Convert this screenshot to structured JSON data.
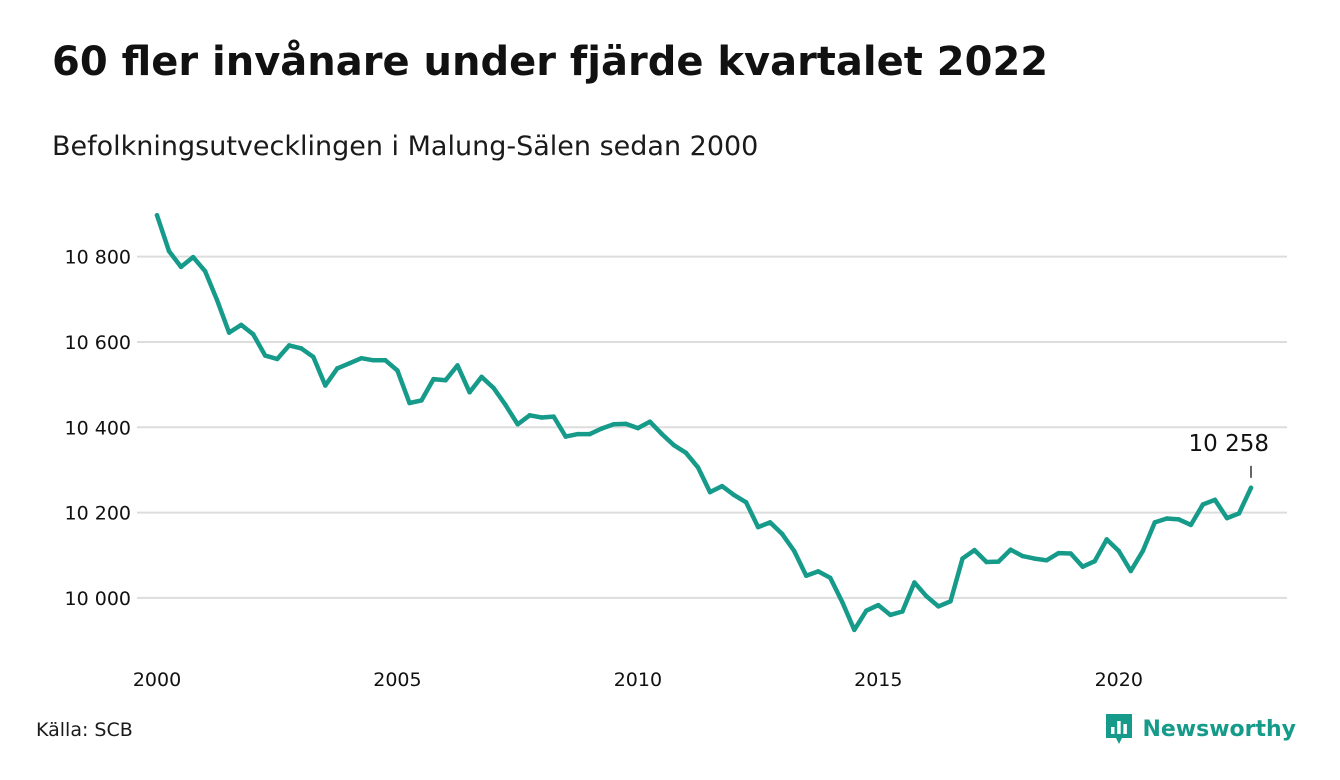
{
  "title": "60 fler invånare under fjärde kvartalet 2022",
  "subtitle": "Befolkningsutvecklingen i Malung-Sälen sedan 2000",
  "source": "Källa: SCB",
  "brand": {
    "name": "Newsworthy",
    "icon": "newsworthy-logo-icon",
    "color": "#169b8a"
  },
  "colors": {
    "line": "#169b8a",
    "grid": "#dddddd",
    "text": "#111111"
  },
  "chart_data": {
    "type": "line",
    "title": "60 fler invånare under fjärde kvartalet 2022",
    "subtitle": "Befolkningsutvecklingen i Malung-Sälen sedan 2000",
    "xlabel": "",
    "ylabel": "",
    "grid": true,
    "y_gridlines": true,
    "x_ticks": [
      2000,
      2005,
      2010,
      2015,
      2020
    ],
    "x_tick_labels": [
      "2000",
      "2005",
      "2010",
      "2015",
      "2020"
    ],
    "y_ticks": [
      10000,
      10200,
      10400,
      10600,
      10800
    ],
    "y_tick_labels": [
      "10 000",
      "10 200",
      "10 400",
      "10 600",
      "10 800"
    ],
    "xlim": [
      2000,
      2022.75
    ],
    "ylim": [
      9920,
      10900
    ],
    "annotation": {
      "label": "10 258",
      "x": 2022.75,
      "y": 10258
    },
    "series": [
      {
        "x": [
          2000,
          2000.25,
          2000.5,
          2000.75,
          2001,
          2001.25,
          2001.5,
          2001.75,
          2002,
          2002.25,
          2002.5,
          2002.75,
          2003,
          2003.25,
          2003.5,
          2003.75,
          2004,
          2004.25,
          2004.5,
          2004.75,
          2005,
          2005.25,
          2005.5,
          2005.75,
          2006,
          2006.25,
          2006.5,
          2006.75,
          2007,
          2007.25,
          2007.5,
          2007.75,
          2008,
          2008.25,
          2008.5,
          2008.75,
          2009,
          2009.25,
          2009.5,
          2009.75,
          2010,
          2010.25,
          2010.5,
          2010.75,
          2011,
          2011.25,
          2011.5,
          2011.75,
          2012,
          2012.25,
          2012.5,
          2012.75,
          2013,
          2013.25,
          2013.5,
          2013.75,
          2014,
          2014.25,
          2014.5,
          2014.75,
          2015,
          2015.25,
          2015.5,
          2015.75,
          2016,
          2016.25,
          2016.5,
          2016.75,
          2017,
          2017.25,
          2017.5,
          2017.75,
          2018,
          2018.25,
          2018.5,
          2018.75,
          2019,
          2019.25,
          2019.5,
          2019.75,
          2020,
          2020.25,
          2020.5,
          2020.75,
          2021,
          2021.25,
          2021.5,
          2021.75,
          2022,
          2022.25,
          2022.5,
          2022.75
        ],
        "values": [
          10897,
          10813,
          10776,
          10799,
          10766,
          10698,
          10622,
          10640,
          10618,
          10568,
          10560,
          10592,
          10585,
          10565,
          10498,
          10538,
          10550,
          10562,
          10557,
          10557,
          10533,
          10457,
          10463,
          10513,
          10510,
          10545,
          10482,
          10518,
          10492,
          10452,
          10407,
          10428,
          10423,
          10425,
          10378,
          10384,
          10384,
          10397,
          10407,
          10408,
          10398,
          10413,
          10384,
          10358,
          10340,
          10306,
          10248,
          10262,
          10241,
          10224,
          10166,
          10177,
          10150,
          10110,
          10052,
          10062,
          10047,
          9990,
          9925,
          9970,
          9983,
          9960,
          9968,
          10036,
          10004,
          9980,
          9992,
          10092,
          10112,
          10084,
          10085,
          10113,
          10098,
          10092,
          10088,
          10105,
          10104,
          10073,
          10086,
          10137,
          10110,
          10063,
          10110,
          10177,
          10186,
          10184,
          10171,
          10219,
          10230,
          10187,
          10198,
          10258
        ]
      }
    ]
  }
}
